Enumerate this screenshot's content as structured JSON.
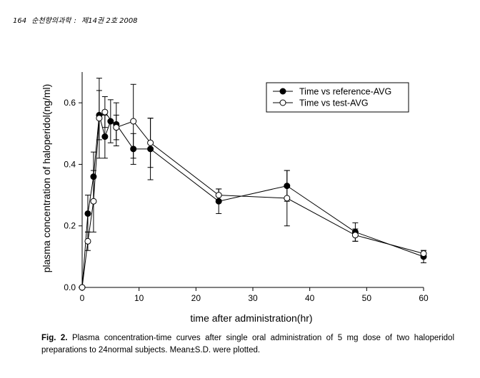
{
  "header": {
    "page_number": "164",
    "journal": "순천향의과학",
    "issue": "제14권 2호 2008"
  },
  "chart_data": {
    "type": "line",
    "x_ticks": [
      0,
      10,
      20,
      30,
      40,
      50,
      60
    ],
    "y_ticks": [
      "0.0",
      "0.2",
      "0.4",
      "0.6"
    ],
    "xlim": [
      0,
      60
    ],
    "ylim": [
      0,
      0.7
    ],
    "xlabel": "time after  administration(hr)",
    "ylabel": "plasma concentration of haloperidol(ng/ml)",
    "legend_position": "top-right",
    "series": [
      {
        "name": "Time vs reference-AVG",
        "marker": "filled-circle",
        "points": [
          {
            "x": 0,
            "y": 0.0,
            "err": 0
          },
          {
            "x": 1,
            "y": 0.24,
            "err": 0.06
          },
          {
            "x": 2,
            "y": 0.36,
            "err": 0.08
          },
          {
            "x": 3,
            "y": 0.56,
            "err": 0.08
          },
          {
            "x": 4,
            "y": 0.49,
            "err": 0.07
          },
          {
            "x": 5,
            "y": 0.54,
            "err": 0.07
          },
          {
            "x": 6,
            "y": 0.53,
            "err": 0.07
          },
          {
            "x": 9,
            "y": 0.45,
            "err": 0.05
          },
          {
            "x": 12,
            "y": 0.45,
            "err": 0.1
          },
          {
            "x": 24,
            "y": 0.28,
            "err": 0.04
          },
          {
            "x": 36,
            "y": 0.33,
            "err": 0.05
          },
          {
            "x": 48,
            "y": 0.18,
            "err": 0.03
          },
          {
            "x": 60,
            "y": 0.1,
            "err": 0.02
          }
        ]
      },
      {
        "name": "Time vs test-AVG",
        "marker": "open-circle",
        "points": [
          {
            "x": 0,
            "y": 0.0,
            "err": 0
          },
          {
            "x": 1,
            "y": 0.15,
            "err": 0.03
          },
          {
            "x": 2,
            "y": 0.28,
            "err": 0.1
          },
          {
            "x": 3,
            "y": 0.55,
            "err": 0.13
          },
          {
            "x": 4,
            "y": 0.57,
            "err": 0.05
          },
          {
            "x": 6,
            "y": 0.52,
            "err": 0.04
          },
          {
            "x": 9,
            "y": 0.54,
            "err": 0.12
          },
          {
            "x": 12,
            "y": 0.47,
            "err": 0.08
          },
          {
            "x": 24,
            "y": 0.3,
            "err": 0.02
          },
          {
            "x": 36,
            "y": 0.29,
            "err": 0.09
          },
          {
            "x": 48,
            "y": 0.17,
            "err": 0.02
          },
          {
            "x": 60,
            "y": 0.11,
            "err": 0.01
          }
        ]
      }
    ]
  },
  "caption": {
    "label": "Fig. 2.",
    "text": "Plasma concentration-time curves after single oral administration of 5 mg dose of two haloperidol preparations to 24normal subjects. Mean±S.D. were plotted."
  }
}
